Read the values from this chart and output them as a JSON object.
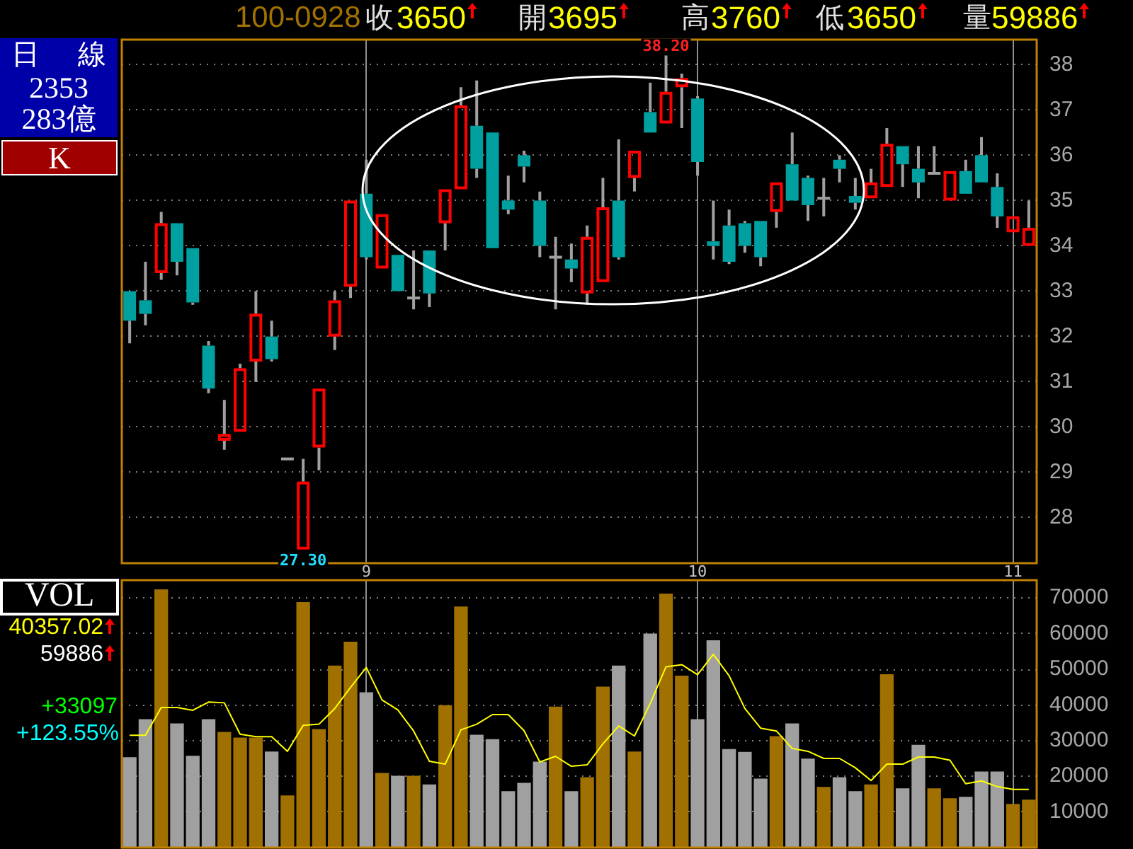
{
  "chart_data": [
    {
      "type": "candlestick",
      "categories": [
        null,
        null,
        null,
        null,
        null,
        null,
        null,
        null,
        null,
        null,
        null,
        null,
        null,
        null,
        null,
        "9",
        null,
        null,
        null,
        null,
        null,
        null,
        null,
        null,
        null,
        null,
        null,
        null,
        null,
        null,
        null,
        null,
        null,
        null,
        null,
        null,
        "10",
        null,
        null,
        null,
        null,
        null,
        null,
        null,
        null,
        null,
        null,
        null,
        null,
        null,
        null,
        null,
        null,
        null,
        null,
        null,
        "11",
        null
      ],
      "ohlc": [
        [
          33.0,
          33.0,
          31.85,
          32.35
        ],
        [
          32.8,
          33.65,
          32.25,
          32.5
        ],
        [
          33.4,
          34.75,
          33.25,
          34.5
        ],
        [
          34.5,
          34.5,
          33.35,
          33.65
        ],
        [
          33.95,
          33.95,
          32.7,
          32.75
        ],
        [
          31.8,
          31.9,
          30.75,
          30.85
        ],
        [
          29.7,
          30.6,
          29.5,
          29.85
        ],
        [
          29.9,
          31.4,
          29.9,
          31.3
        ],
        [
          31.45,
          33.0,
          31.0,
          32.5
        ],
        [
          32.0,
          32.35,
          31.45,
          31.5
        ],
        [
          29.3,
          29.3,
          29.3,
          29.3
        ],
        [
          27.3,
          29.3,
          27.3,
          28.8
        ],
        [
          29.55,
          30.85,
          29.05,
          30.85
        ],
        [
          32.0,
          33.0,
          31.7,
          32.8
        ],
        [
          33.1,
          35.0,
          32.85,
          35.0
        ],
        [
          35.15,
          35.9,
          33.7,
          33.75
        ],
        [
          33.5,
          34.7,
          33.5,
          34.7
        ],
        [
          33.8,
          33.8,
          33.0,
          33.0
        ],
        [
          32.85,
          33.9,
          32.6,
          32.85
        ],
        [
          33.9,
          33.9,
          32.65,
          32.95
        ],
        [
          34.5,
          35.25,
          33.9,
          35.25
        ],
        [
          35.25,
          37.5,
          35.25,
          37.1
        ],
        [
          36.65,
          37.65,
          35.5,
          35.7
        ],
        [
          36.5,
          36.5,
          33.95,
          33.95
        ],
        [
          35.0,
          35.55,
          34.7,
          34.8
        ],
        [
          36.0,
          36.1,
          35.4,
          35.75
        ],
        [
          35.0,
          35.2,
          33.75,
          34.0
        ],
        [
          33.75,
          34.2,
          32.6,
          33.75
        ],
        [
          33.7,
          34.05,
          33.2,
          33.5
        ],
        [
          32.95,
          34.45,
          32.7,
          34.2
        ],
        [
          33.2,
          35.5,
          33.2,
          34.85
        ],
        [
          35.0,
          36.35,
          33.7,
          33.75
        ],
        [
          35.5,
          36.1,
          35.2,
          36.1
        ],
        [
          36.95,
          37.6,
          36.5,
          36.5
        ],
        [
          36.7,
          38.2,
          36.7,
          37.4
        ],
        [
          37.5,
          37.8,
          36.6,
          37.7
        ],
        [
          37.25,
          37.3,
          35.55,
          35.85
        ],
        [
          34.1,
          35.0,
          33.7,
          34.0
        ],
        [
          34.45,
          34.8,
          33.6,
          33.65
        ],
        [
          34.5,
          34.55,
          33.85,
          34.0
        ],
        [
          34.55,
          34.55,
          33.55,
          33.75
        ],
        [
          34.75,
          35.4,
          34.4,
          35.4
        ],
        [
          35.8,
          36.5,
          35.0,
          35.0
        ],
        [
          35.5,
          35.55,
          34.55,
          34.9
        ],
        [
          35.05,
          35.5,
          34.65,
          35.05
        ],
        [
          35.9,
          36.0,
          35.4,
          35.7
        ],
        [
          35.1,
          35.5,
          34.8,
          34.95
        ],
        [
          35.05,
          35.7,
          35.05,
          35.4
        ],
        [
          35.3,
          36.6,
          35.3,
          36.25
        ],
        [
          36.2,
          36.2,
          35.3,
          35.8
        ],
        [
          35.7,
          36.2,
          35.05,
          35.4
        ],
        [
          35.6,
          36.2,
          35.6,
          35.6
        ],
        [
          35.0,
          35.65,
          35.0,
          35.65
        ],
        [
          35.65,
          35.9,
          35.15,
          35.15
        ],
        [
          36.0,
          36.4,
          35.4,
          35.4
        ],
        [
          35.3,
          35.6,
          34.4,
          34.65
        ],
        [
          34.3,
          34.65,
          34.3,
          34.65
        ],
        [
          34.0,
          35.0,
          34.0,
          34.4
        ]
      ],
      "colors": [
        "#00a0a0",
        "#00a0a0",
        "#ff0000",
        "#00a0a0",
        "#00a0a0",
        "#00a0a0",
        "#ff0000",
        "#ff0000",
        "#ff0000",
        "#00a0a0",
        "#a0a0a0",
        "#ff0000",
        "#ff0000",
        "#ff0000",
        "#ff0000",
        "#00a0a0",
        "#ff0000",
        "#00a0a0",
        "#a0a0a0",
        "#00a0a0",
        "#ff0000",
        "#ff0000",
        "#00a0a0",
        "#00a0a0",
        "#00a0a0",
        "#00a0a0",
        "#00a0a0",
        "#a0a0a0",
        "#00a0a0",
        "#ff0000",
        "#ff0000",
        "#00a0a0",
        "#ff0000",
        "#00a0a0",
        "#ff0000",
        "#ff0000",
        "#00a0a0",
        "#00a0a0",
        "#00a0a0",
        "#00a0a0",
        "#00a0a0",
        "#ff0000",
        "#00a0a0",
        "#00a0a0",
        "#a0a0a0",
        "#00a0a0",
        "#00a0a0",
        "#ff0000",
        "#ff0000",
        "#00a0a0",
        "#00a0a0",
        "#a0a0a0",
        "#ff0000",
        "#00a0a0",
        "#00a0a0",
        "#00a0a0",
        "#ff0000",
        "#ff0000"
      ],
      "ylim": [
        27,
        38.55
      ],
      "yticks": [
        28,
        29,
        30,
        31,
        32,
        33,
        34,
        35,
        36,
        37,
        38
      ],
      "grid": true,
      "annotations": [
        "100-0928",
        "收",
        "3650",
        "開",
        "3695",
        "高",
        "3760",
        "低",
        "3650",
        "量",
        "59886",
        "日 線",
        "2353",
        "283億",
        "K",
        "38.20",
        "27.30"
      ]
    },
    {
      "type": "bar",
      "categories": [
        null,
        null,
        null,
        null,
        null,
        null,
        null,
        null,
        null,
        null,
        null,
        null,
        null,
        null,
        null,
        "9",
        null,
        null,
        null,
        null,
        null,
        null,
        null,
        null,
        null,
        null,
        null,
        null,
        null,
        null,
        null,
        null,
        null,
        null,
        null,
        null,
        "10",
        null,
        null,
        null,
        null,
        null,
        null,
        null,
        null,
        null,
        null,
        null,
        null,
        null,
        null,
        null,
        null,
        null,
        null,
        null,
        "11",
        null
      ],
      "series": [
        {
          "type": "bar",
          "colors": [
            "#a0a0a0",
            "#a0a0a0",
            "#a07000",
            "#a0a0a0",
            "#a0a0a0",
            "#a0a0a0",
            "#a07000",
            "#a07000",
            "#a07000",
            "#a0a0a0",
            "#a07000",
            "#a07000",
            "#a07000",
            "#a07000",
            "#a07000",
            "#a0a0a0",
            "#a07000",
            "#a0a0a0",
            "#a07000",
            "#a0a0a0",
            "#a07000",
            "#a07000",
            "#a0a0a0",
            "#a0a0a0",
            "#a0a0a0",
            "#a0a0a0",
            "#a0a0a0",
            "#a07000",
            "#a0a0a0",
            "#a07000",
            "#a07000",
            "#a0a0a0",
            "#a07000",
            "#a0a0a0",
            "#a07000",
            "#a07000",
            "#a0a0a0",
            "#a0a0a0",
            "#a0a0a0",
            "#a0a0a0",
            "#a0a0a0",
            "#a07000",
            "#a0a0a0",
            "#a0a0a0",
            "#a07000",
            "#a0a0a0",
            "#a0a0a0",
            "#a07000",
            "#a07000",
            "#a0a0a0",
            "#a0a0a0",
            "#a07000",
            "#a07000",
            "#a0a0a0",
            "#a0a0a0",
            "#a0a0a0",
            "#a07000",
            "#a07000"
          ],
          "values": [
            25200,
            35900,
            72300,
            34700,
            25600,
            35900,
            32300,
            30700,
            30700,
            26800,
            14500,
            68700,
            33100,
            50900,
            57600,
            43400,
            20800,
            20000,
            20000,
            17600,
            39800,
            67500,
            31500,
            30300,
            15700,
            18000,
            24000,
            39400,
            15700,
            19600,
            45000,
            50900,
            26800,
            59900,
            71100,
            48100,
            35900,
            58000,
            27500,
            26700,
            19200,
            31100,
            34700,
            24800,
            16900,
            19600,
            15700,
            17600,
            48500,
            16500,
            28700,
            16500,
            13700,
            14100,
            21200,
            21200,
            12100,
            13300
          ]
        },
        {
          "type": "line",
          "color": "#ffff00",
          "values": [
            31500,
            31500,
            39300,
            39300,
            38500,
            40800,
            40600,
            31800,
            31100,
            31100,
            27000,
            34300,
            34600,
            39000,
            44900,
            50500,
            41400,
            38600,
            32700,
            24200,
            23400,
            33000,
            34600,
            37300,
            37300,
            32800,
            24000,
            25600,
            22800,
            23200,
            29100,
            34100,
            31300,
            40400,
            50700,
            51300,
            48500,
            54200,
            48200,
            39000,
            33500,
            32700,
            27800,
            27000,
            25000,
            25000,
            22400,
            18800,
            23400,
            23400,
            25400,
            25400,
            24500,
            17900,
            18700,
            17100,
            16300,
            16300
          ]
        }
      ],
      "ylim": [
        0,
        75000
      ],
      "yticks": [
        10000,
        20000,
        30000,
        40000,
        50000,
        60000,
        70000
      ],
      "grid": true,
      "tick_labels": "y",
      "annotations": [
        "VOL",
        "40357.02",
        "59886",
        "+33097",
        "+123.55%"
      ]
    }
  ]
}
